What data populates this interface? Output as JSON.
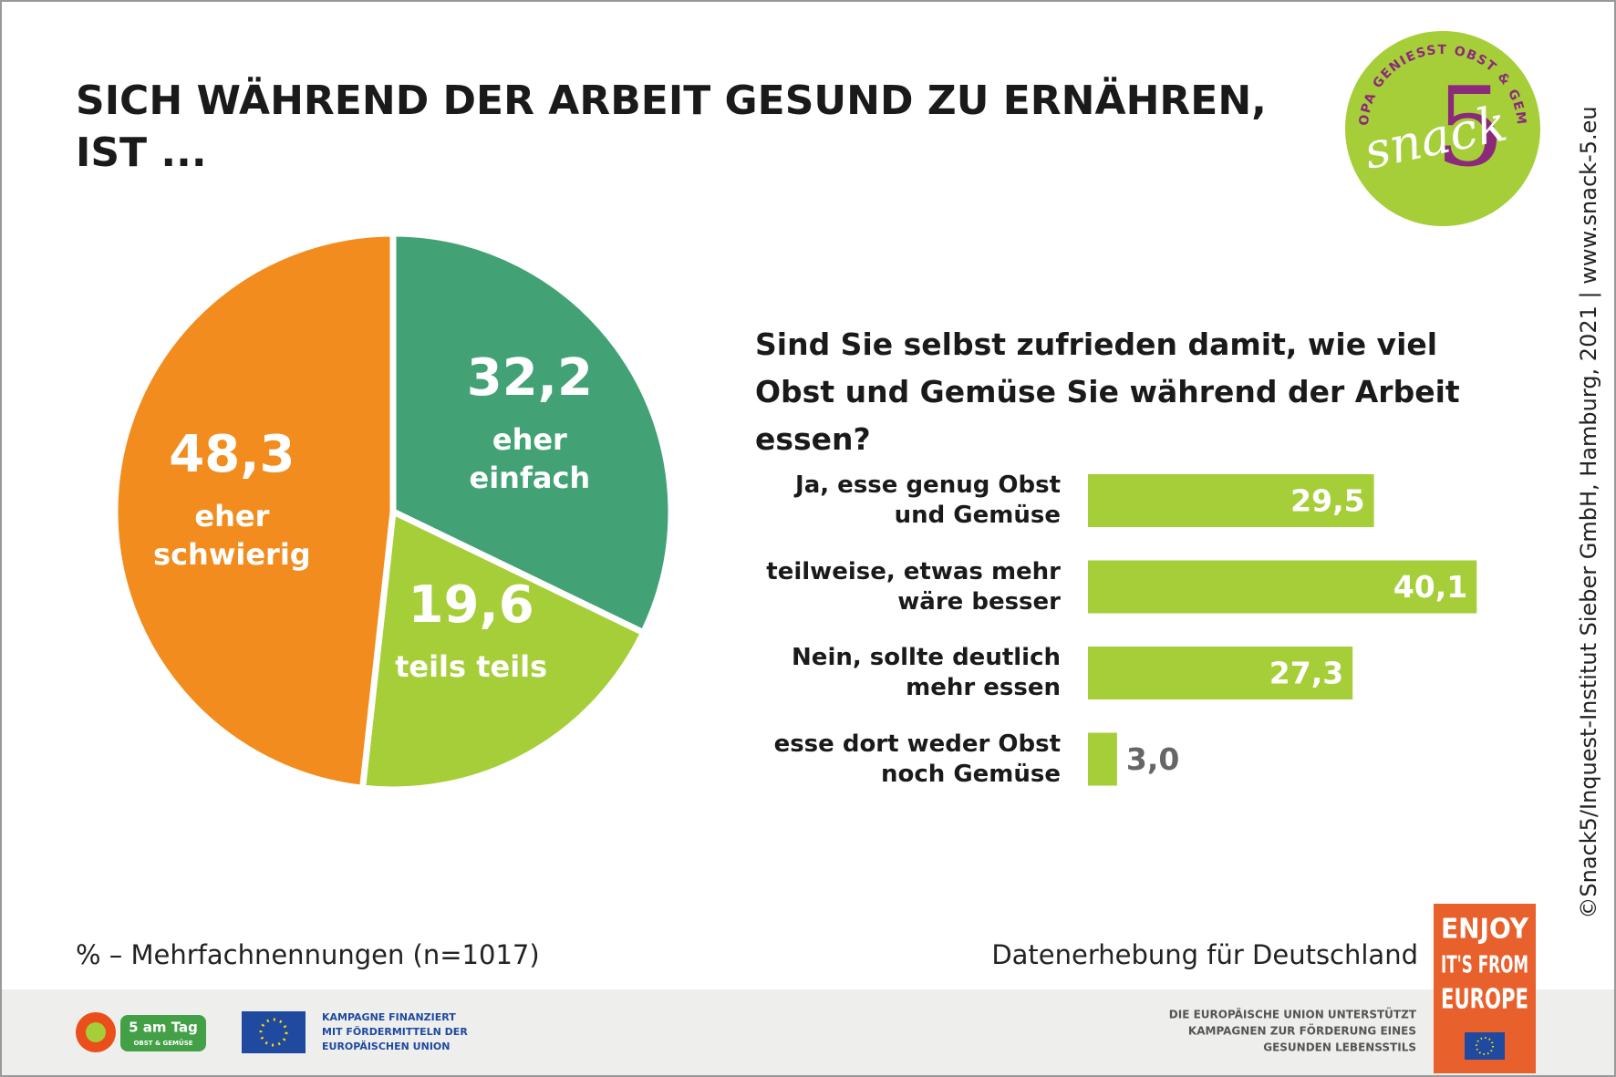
{
  "title": [
    "SICH WÄHREND DER ARBEIT GESUND ZU ERNÄHREN,",
    "IST ..."
  ],
  "chart_data": [
    {
      "type": "pie",
      "categories": [
        "eher einfach",
        "teils teils",
        "eher schwierig"
      ],
      "values": [
        32.2,
        19.6,
        48.3
      ],
      "value_labels": [
        "32,2",
        "19,6",
        "48,3"
      ],
      "colors": [
        "#43a275",
        "#a6ce39",
        "#f28c1e"
      ]
    },
    {
      "type": "bar",
      "title": "Sind Sie selbst zufrieden damit, wie viel Obst und Gemüse Sie während der Arbeit essen?",
      "categories": [
        "Ja, esse genug Obst und Gemüse",
        "teilweise, etwas mehr wäre besser",
        "Nein, sollte deutlich mehr essen",
        "esse dort weder Obst noch Gemüse"
      ],
      "values": [
        29.5,
        40.1,
        27.3,
        3.0
      ],
      "value_labels": [
        "29,5",
        "40,1",
        "27,3",
        "3,0"
      ],
      "color": "#a6ce39"
    }
  ],
  "note": "% – Mehrfachnennungen (n=1017)",
  "source": "Datenerhebung für Deutschland",
  "copyright": "©Snack5/Inquest-Institut Sieber GmbH, Hamburg, 2021 | www.snack-5.eu",
  "logos": {
    "snack5": {
      "ring": "EUROPA GENIESST OBST & GEMÜSE",
      "word": "snack",
      "number": "5"
    },
    "five_a_day": {
      "name": "5 am Tag",
      "sub": "OBST & GEMÜSE"
    },
    "eu_funding": [
      "KAMPAGNE FINANZIERT",
      "MIT FÖRDERMITTELN DER",
      "EUROPÄISCHEN UNION"
    ],
    "eu_support": [
      "DIE EUROPÄISCHE UNION UNTERSTÜTZT",
      "KAMPAGNEN ZUR FÖRDERUNG EINES",
      "GESUNDEN LEBENSSTILS"
    ],
    "enjoy": [
      "ENJOY",
      "IT'S FROM",
      "EUROPE"
    ]
  }
}
